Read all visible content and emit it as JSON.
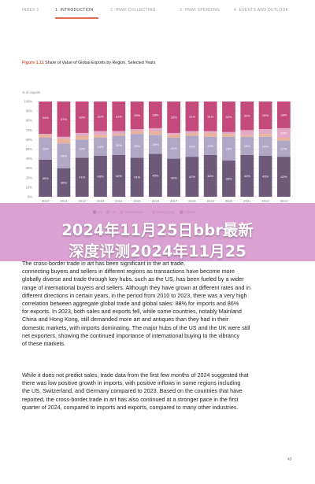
{
  "nav": {
    "items": [
      {
        "label": "INDEX   1"
      },
      {
        "label": "1. INTRODUCTION"
      },
      {
        "label": "2. HNWI COLLECTING"
      },
      {
        "label": "3. HNWI SPENDING"
      },
      {
        "label": "4. EVENTS AND OUTLOOK"
      }
    ]
  },
  "figure": {
    "number": "Figure 1.11",
    "title": "Share of Value of Global Exports by Region, Selected Years"
  },
  "chart_data": {
    "type": "bar",
    "stacked": true,
    "ylabel": "% of exports",
    "ylim": [
      0,
      100
    ],
    "yticks": [
      "0%",
      "10%",
      "20%",
      "30%",
      "40%",
      "50%",
      "60%",
      "70%",
      "80%",
      "90%",
      "100%"
    ],
    "categories": [
      "2010",
      "2011",
      "2012",
      "2013",
      "2014",
      "2015",
      "2016",
      "2017",
      "2018",
      "2019",
      "2020",
      "2021",
      "2022",
      "2023"
    ],
    "series": [
      {
        "name": "US",
        "color": "#6c5a78",
        "values": [
          39,
          30,
          41,
          43,
          44,
          41,
          45,
          40,
          42,
          44,
          38,
          44,
          43,
          42
        ]
      },
      {
        "name": "UK",
        "color": "#b0a6c6",
        "values": [
          23,
          26,
          19,
          19,
          20,
          25,
          20,
          22,
          22,
          19,
          25,
          19,
          20,
          17
        ]
      },
      {
        "name": "Switzerland",
        "color": "#e8b39c",
        "values": [
          3,
          5,
          4,
          3,
          2,
          3,
          4,
          3,
          3,
          4,
          3,
          2,
          3,
          3
        ]
      },
      {
        "name": "Hong Kong",
        "color": "#e2a8c6",
        "values": [
          1,
          2,
          3,
          4,
          3,
          2,
          3,
          2,
          2,
          2,
          2,
          5,
          5,
          10
        ]
      },
      {
        "name": "Others",
        "color": "#c44a7c",
        "values": [
          34,
          37,
          33,
          31,
          31,
          29,
          28,
          33,
          31,
          31,
          32,
          30,
          29,
          28
        ]
      }
    ],
    "legend_position": "bottom"
  },
  "banner": {
    "line1": "2024年11月25日bbr最新",
    "line2": "深度评测2024年11月25"
  },
  "paragraphs": [
    {
      "lines": [
        "The cross-border trade in art has been significant in the art trade,",
        "connecting buyers and sellers in different regions as transactions have become more",
        "globally diverse and trade through key hubs, such as the US, has been fueled by a wider",
        "range of international buyers and sellers. Although they have grown at different rates and in",
        "different directions in certain years, in the period from 2010 to 2023, there was a very high",
        "correlation between aggregate global trade and global sales: 88% for imports and 86%",
        "for exports. In 2023, both sales and exports fell, while some countries, notably Mainland",
        "China and Hong Kong, still demanded more art and antiques than they had in their",
        "domestic markets, with imports dominating. The major hubs of the US and the UK were still",
        "net exporters, showing the continued importance of international buying to the vibrancy",
        "of these markets."
      ]
    },
    {
      "lines": [
        "While it does not predict sales, trade data from the first few months of 2024 suggested that",
        "there was low positive growth in imports, with positive inflows in some regions including",
        "the US, Switzerland, and Germany compared to 2023. Based on the countries that have",
        "reported, the cross-border trade in art has also continued at a stronger pace in the first",
        "quarter of 2024, compared to imports and exports, compared to many other industries."
      ]
    }
  ],
  "page_number": "43"
}
